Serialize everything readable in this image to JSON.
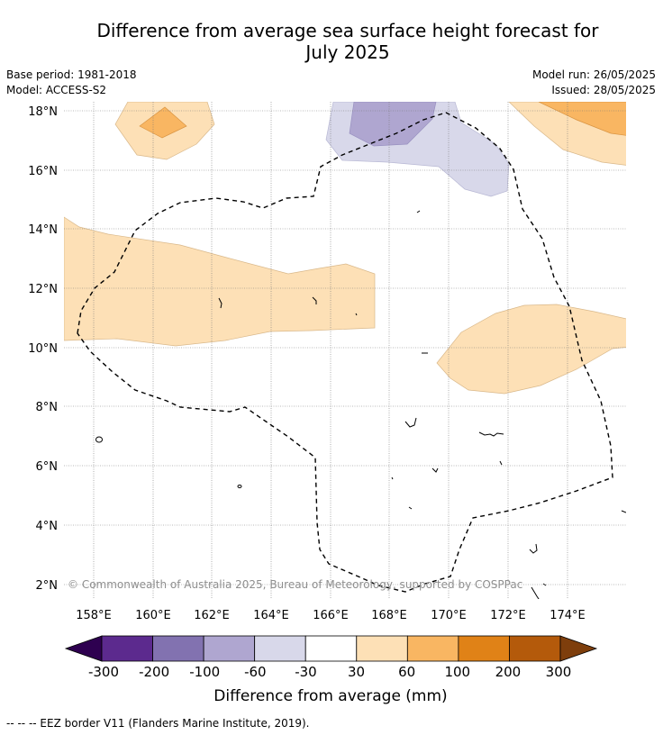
{
  "title_line1": "Difference from average sea surface height forecast for",
  "title_line2": "July 2025",
  "base_period": "Base period: 1981-2018",
  "model": "Model: ACCESS-S2",
  "model_run": "Model run: 26/05/2025",
  "issued": "Issued: 28/05/2025",
  "copyright": "© Commonwealth of Australia 2025, Bureau of Meteorology, supported by COSPPac",
  "lat_labels": [
    "18°N",
    "16°N",
    "14°N",
    "12°N",
    "10°N",
    "8°N",
    "6°N",
    "4°N",
    "2°N"
  ],
  "lon_labels": [
    "158°E",
    "160°E",
    "162°E",
    "164°E",
    "166°E",
    "168°E",
    "170°E",
    "172°E",
    "174°E"
  ],
  "colorbar": {
    "label": "Difference from average (mm)",
    "ticks": [
      "-300",
      "-200",
      "-100",
      "-60",
      "-30",
      "30",
      "60",
      "100",
      "200",
      "300"
    ],
    "colors": [
      "#5c2a8e",
      "#8272b0",
      "#afa6d0",
      "#d8d8ea",
      "#ffffff",
      "#fde0b6",
      "#f9b662",
      "#e08217",
      "#b45a0b"
    ],
    "extend_low_color": "#2e0050",
    "extend_high_color": "#7e3e0c"
  },
  "footnote": "--  --  -- EEZ border V11 (Flanders Marine Institute, 2019)."
}
